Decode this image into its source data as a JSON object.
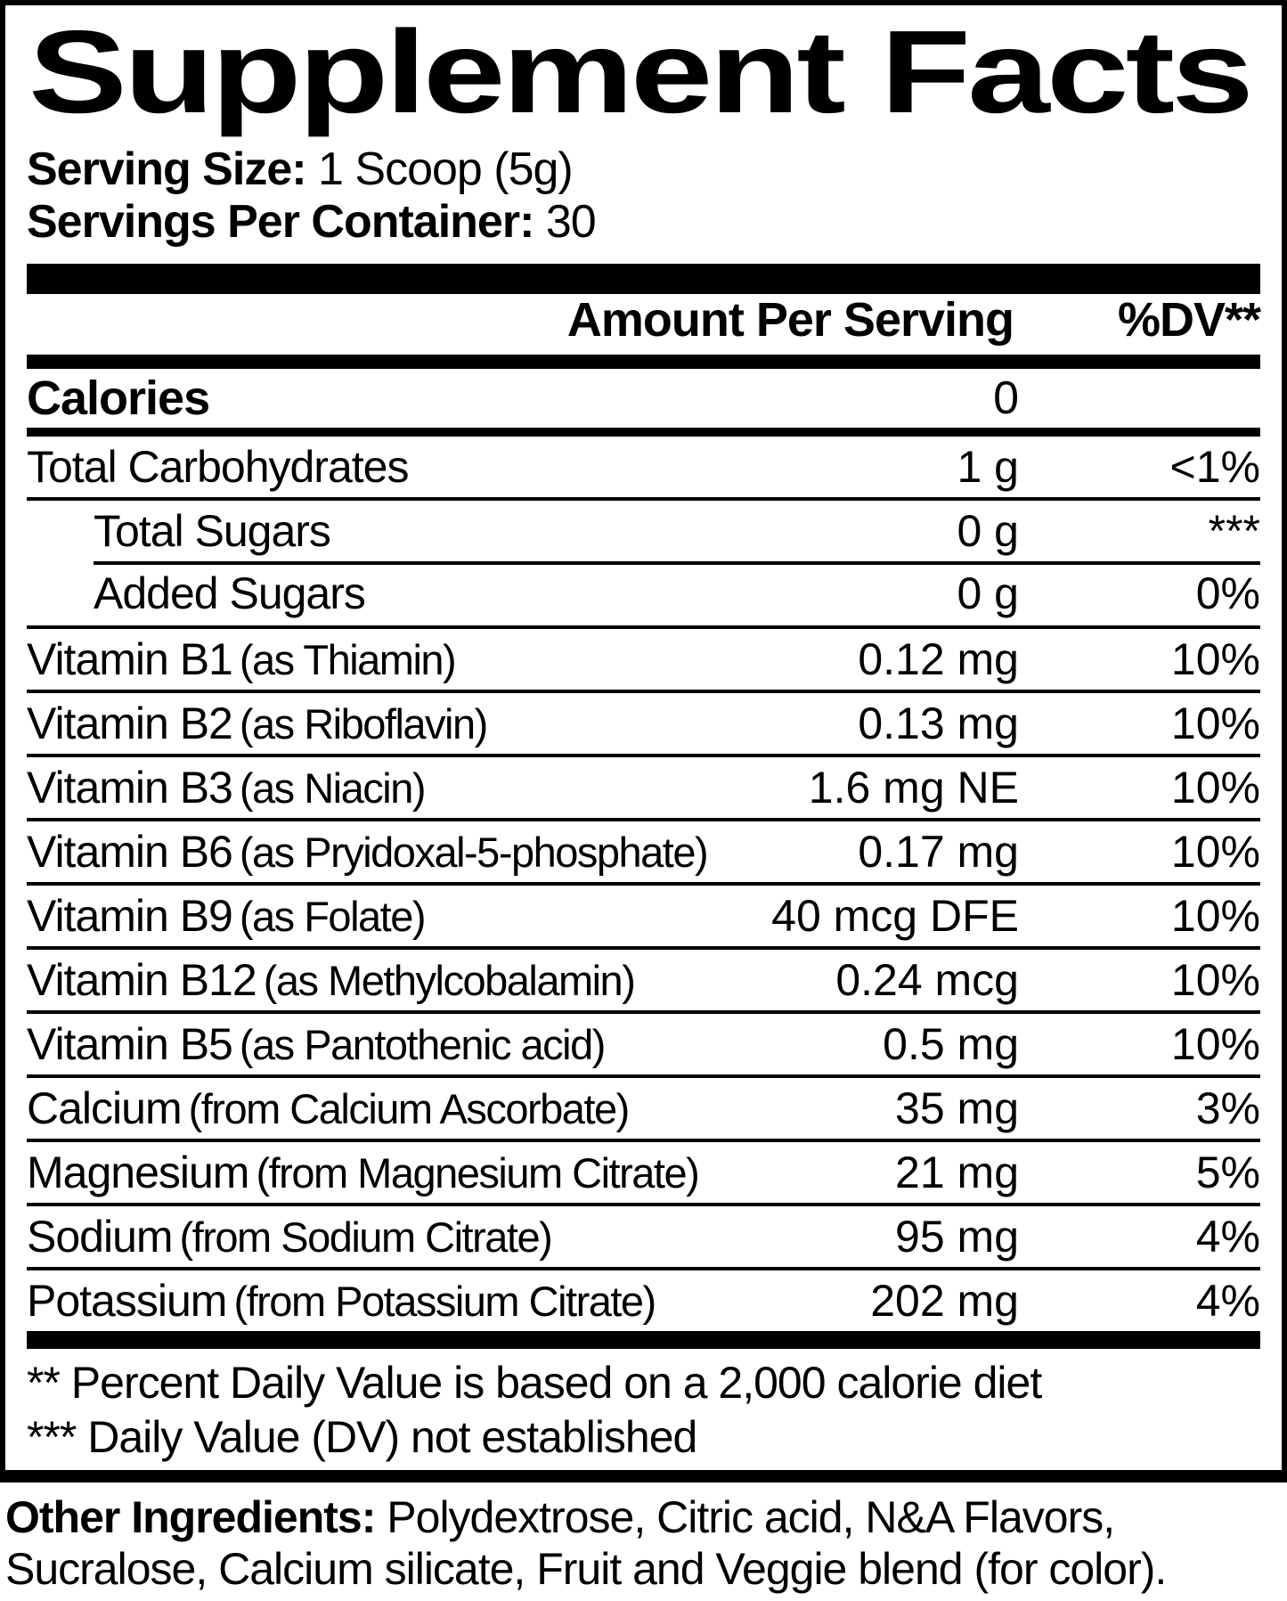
{
  "title": "Supplement Facts",
  "serving": {
    "size_label": "Serving Size:",
    "size_value": "1 Scoop (5g)",
    "count_label": "Servings Per Container:",
    "count_value": "30"
  },
  "table": {
    "amount_header": "Amount Per Serving",
    "dv_header": "%DV**",
    "calories": {
      "name": "Calories",
      "amount": "0"
    },
    "rows": [
      {
        "name": "Total Carbohydrates",
        "amount": "1 g",
        "dv": "<1%"
      },
      {
        "name": "Total Sugars",
        "amount": "0 g",
        "dv": "***"
      },
      {
        "name": "Added Sugars",
        "amount": "0 g",
        "dv": "0%"
      },
      {
        "name": "Vitamin B1",
        "paren": "(as Thiamin)",
        "amount": "0.12 mg",
        "dv": "10%"
      },
      {
        "name": "Vitamin B2",
        "paren": "(as Riboflavin)",
        "amount": "0.13 mg",
        "dv": "10%"
      },
      {
        "name": "Vitamin B3",
        "paren": "(as Niacin)",
        "amount": "1.6 mg NE",
        "dv": "10%"
      },
      {
        "name": "Vitamin B6",
        "paren": "(as Pryidoxal-5-phosphate)",
        "amount": "0.17 mg",
        "dv": "10%"
      },
      {
        "name": "Vitamin B9",
        "paren": "(as Folate)",
        "amount": "40 mcg DFE",
        "dv": "10%"
      },
      {
        "name": "Vitamin B12",
        "paren": "(as Methylcobalamin)",
        "amount": "0.24 mcg",
        "dv": "10%"
      },
      {
        "name": "Vitamin B5",
        "paren": "(as Pantothenic acid)",
        "amount": "0.5 mg",
        "dv": "10%"
      },
      {
        "name": "Calcium",
        "paren": "(from Calcium Ascorbate)",
        "amount": "35 mg",
        "dv": "3%"
      },
      {
        "name": "Magnesium",
        "paren": "(from Magnesium Citrate)",
        "amount": "21 mg",
        "dv": "5%"
      },
      {
        "name": "Sodium",
        "paren": "(from Sodium Citrate)",
        "amount": "95 mg",
        "dv": "4%"
      },
      {
        "name": "Potassium",
        "paren": "(from Potassium Citrate)",
        "amount": "202 mg",
        "dv": "4%"
      }
    ]
  },
  "footnotes": [
    "** Percent Daily Value is based on a 2,000 calorie diet",
    "*** Daily Value (DV) not established"
  ],
  "other_ingredients": {
    "label": "Other Ingredients:",
    "line1": "Polydextrose, Citric acid, N&A Flavors,",
    "line2": "Sucralose, Calcium silicate, Fruit and Veggie blend (for color)."
  },
  "colors": {
    "ink": "#000000",
    "paper": "#ffffff"
  }
}
